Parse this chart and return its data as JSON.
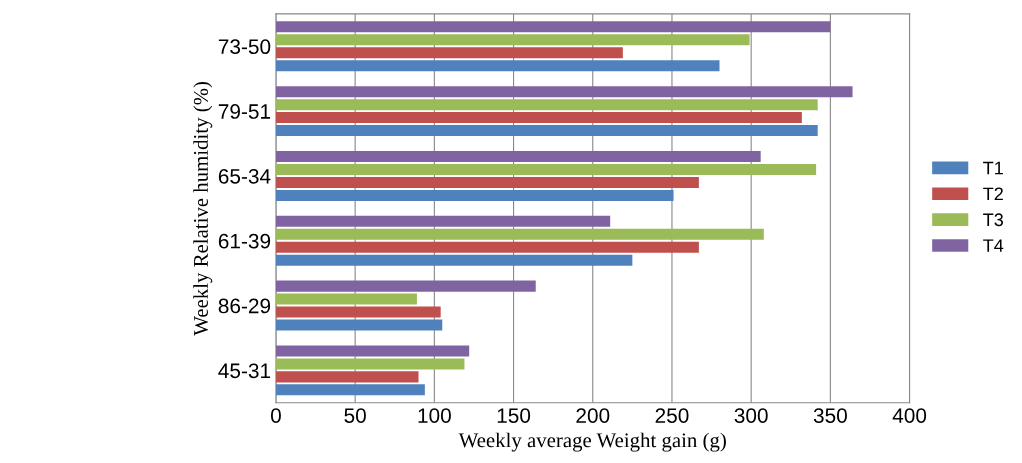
{
  "chart_data": {
    "type": "bar",
    "orientation": "horizontal",
    "xlabel": "Weekly average Weight gain (g)",
    "ylabel": "Weekly Relative humidity (%)",
    "categories": [
      "73-50",
      "79-51",
      "65-34",
      "61-39",
      "86-29",
      "45-31"
    ],
    "series": [
      {
        "name": "T1",
        "color": "#4f81bd",
        "values": [
          280,
          342,
          251,
          225,
          105,
          94
        ]
      },
      {
        "name": "T2",
        "color": "#c0504d",
        "values": [
          219,
          332,
          267,
          267,
          104,
          90
        ]
      },
      {
        "name": "T3",
        "color": "#9bbb59",
        "values": [
          299,
          342,
          341,
          308,
          89,
          119
        ]
      },
      {
        "name": "T4",
        "color": "#8064a2",
        "values": [
          350,
          364,
          306,
          211,
          164,
          122
        ]
      }
    ],
    "xlim": [
      0,
      400
    ],
    "xticks": [
      0,
      50,
      100,
      150,
      200,
      250,
      300,
      350,
      400
    ],
    "grid": "x",
    "legend": "right"
  }
}
